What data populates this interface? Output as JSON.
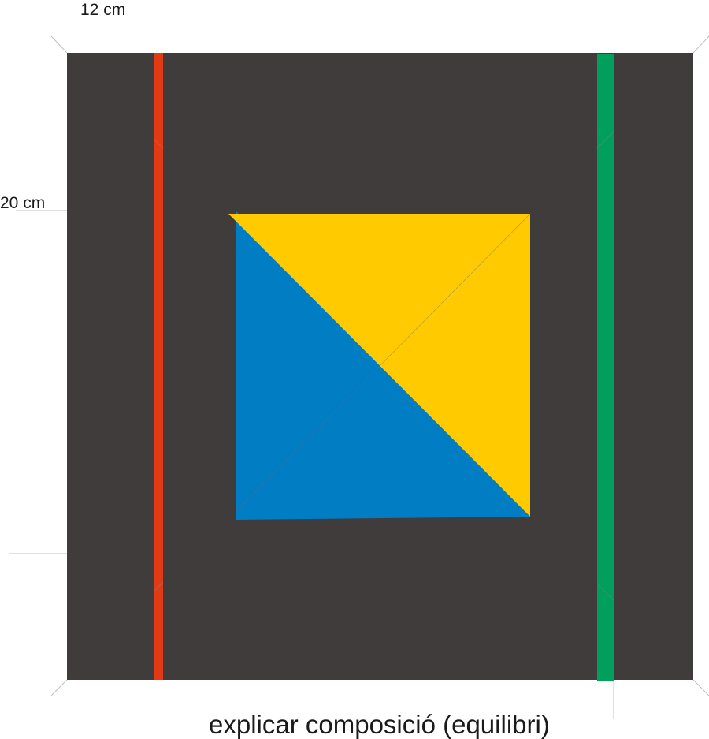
{
  "labels": {
    "width": "12 cm",
    "height": "20 cm",
    "caption": "explicar composició (equilibri)"
  },
  "colors": {
    "board": "#403c3b",
    "red_stripe": "#e33a16",
    "green_stripe": "#00a05c",
    "yellow": "#ffcb00",
    "blue": "#007dc3",
    "guide": "#b4b4b4"
  }
}
